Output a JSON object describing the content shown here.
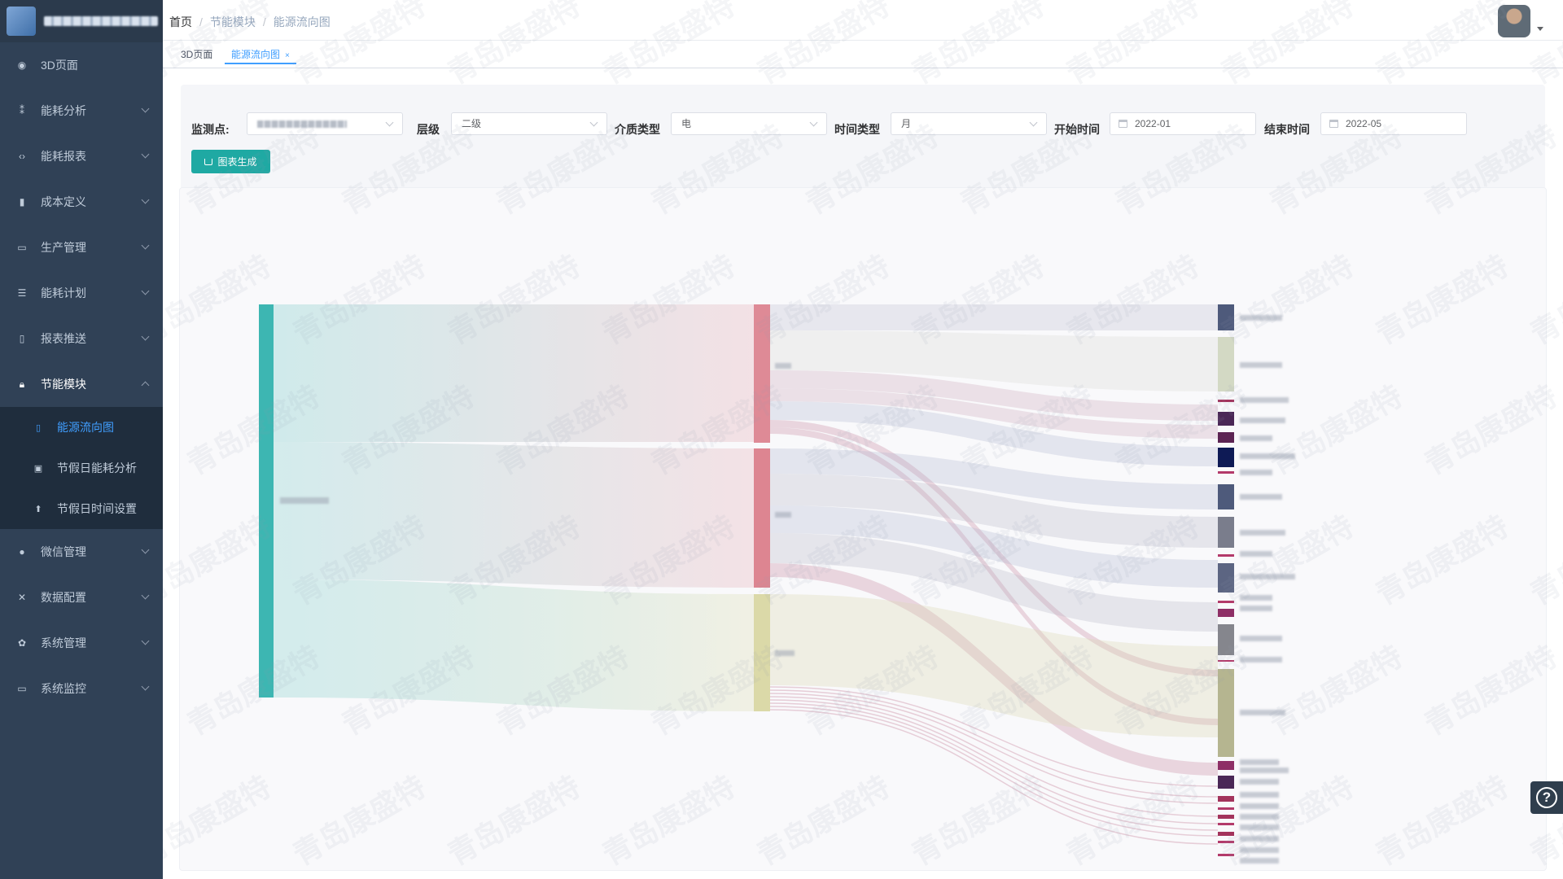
{
  "sidebar": {
    "brand_text": "",
    "menu": [
      {
        "label": "3D页面",
        "icon": "dashboard-icon"
      },
      {
        "label": "能耗分析",
        "icon": "analysis-icon"
      },
      {
        "label": "能耗报表",
        "icon": "code-icon"
      },
      {
        "label": "成本定义",
        "icon": "document-icon"
      },
      {
        "label": "生产管理",
        "icon": "monitor-icon"
      },
      {
        "label": "能耗计划",
        "icon": "plan-icon"
      },
      {
        "label": "报表推送",
        "icon": "push-icon"
      },
      {
        "label": "节能模块",
        "icon": "lock-icon",
        "open": true
      }
    ],
    "submenu": [
      {
        "label": "能源流向图",
        "icon": "flow-icon",
        "active": true
      },
      {
        "label": "节假日能耗分析",
        "icon": "chart-icon"
      },
      {
        "label": "节假日时间设置",
        "icon": "upload-icon"
      }
    ],
    "menu_after": [
      {
        "label": "微信管理",
        "icon": "wechat-icon"
      },
      {
        "label": "数据配置",
        "icon": "config-icon"
      },
      {
        "label": "系统管理",
        "icon": "gear-icon"
      },
      {
        "label": "系统监控",
        "icon": "monitor-icon"
      }
    ]
  },
  "breadcrumb": [
    "首页",
    "节能模块",
    "能源流向图"
  ],
  "tabs": [
    {
      "label": "3D页面"
    },
    {
      "label": "能源流向图",
      "active": true,
      "close": "×"
    }
  ],
  "filters": {
    "monitor_label": "监测点:",
    "level_label": "层级",
    "level_value": "二级",
    "medium_label": "介质类型",
    "medium_value": "电",
    "time_type_label": "时间类型",
    "time_type_value": "月",
    "start_label": "开始时间",
    "start_value": "2022-01",
    "end_label": "结束时间",
    "end_value": "2022-05",
    "generate_button": "图表生成"
  },
  "colors": {
    "accent": "#409eff",
    "teal": "#1fa9a3",
    "sidebar_bg": "#304156",
    "node_root": "#3db6b2",
    "node_mid1": "#de8a96",
    "node_mid2": "#dd8591",
    "node_mid3": "#dbd9a8"
  },
  "watermark_text": "青岛康盛特",
  "help_icon": "?"
}
